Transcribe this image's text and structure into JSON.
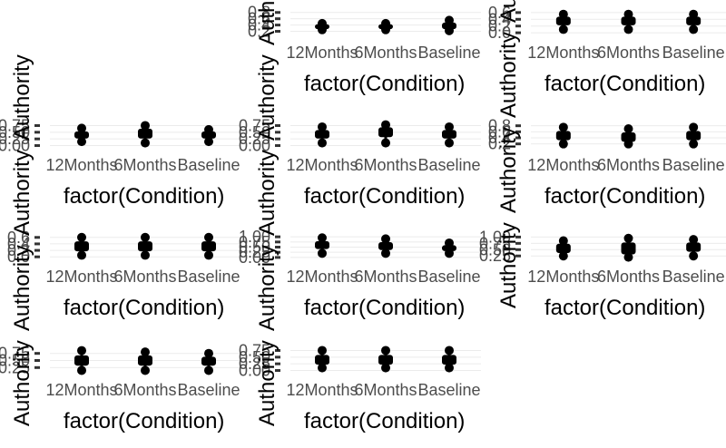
{
  "chart_data": [
    {
      "type": "box",
      "xlabel": "factor(Condition)",
      "ylabel": "Authority",
      "categories": [
        "12Months",
        "6Months",
        "Baseline"
      ],
      "yticks": [
        "0.2",
        "0.4",
        "0.6",
        "0.8"
      ],
      "ylim": [
        0.1,
        0.85
      ],
      "values": [
        [
          0.25,
          0.3,
          0.35,
          0.4,
          0.45
        ],
        [
          0.25,
          0.3,
          0.35,
          0.4,
          0.45
        ],
        [
          0.22,
          0.3,
          0.38,
          0.45,
          0.55
        ]
      ]
    },
    {
      "type": "box",
      "xlabel": "factor(Condition)",
      "ylabel": "Authority",
      "categories": [
        "12Months",
        "6Months",
        "Baseline"
      ],
      "yticks": [
        "0.0",
        "0.2",
        "0.4",
        "0.6"
      ],
      "ylim": [
        -0.05,
        0.65
      ],
      "values": [
        [
          0.1,
          0.25,
          0.35,
          0.45,
          0.55
        ],
        [
          0.1,
          0.25,
          0.35,
          0.45,
          0.55
        ],
        [
          0.1,
          0.25,
          0.35,
          0.45,
          0.55
        ]
      ]
    },
    {
      "type": "box",
      "xlabel": "factor(Condition)",
      "ylabel": "Authority",
      "categories": [
        "12Months",
        "6Months",
        "Baseline"
      ],
      "yticks": [
        "0.00",
        "0.25",
        "0.50",
        "0.75"
      ],
      "ylim": [
        -0.05,
        0.8
      ],
      "values": [
        [
          0.15,
          0.3,
          0.4,
          0.5,
          0.65
        ],
        [
          0.1,
          0.3,
          0.45,
          0.6,
          0.75
        ],
        [
          0.15,
          0.3,
          0.4,
          0.5,
          0.6
        ]
      ]
    },
    {
      "type": "box",
      "xlabel": "factor(Condition)",
      "ylabel": "Authority",
      "categories": [
        "12Months",
        "6Months",
        "Baseline"
      ],
      "yticks": [
        "0.00",
        "0.25",
        "0.50",
        "0.75"
      ],
      "ylim": [
        -0.05,
        0.8
      ],
      "values": [
        [
          0.1,
          0.3,
          0.45,
          0.55,
          0.7
        ],
        [
          0.1,
          0.35,
          0.5,
          0.65,
          0.78
        ],
        [
          0.1,
          0.3,
          0.45,
          0.55,
          0.7
        ]
      ]
    },
    {
      "type": "box",
      "xlabel": "factor(Condition)",
      "ylabel": "Authority",
      "categories": [
        "12Months",
        "6Months",
        "Baseline"
      ],
      "yticks": [
        "0.2",
        "0.4",
        "0.6",
        "0.8"
      ],
      "ylim": [
        0.1,
        0.85
      ],
      "values": [
        [
          0.2,
          0.35,
          0.45,
          0.6,
          0.75
        ],
        [
          0.2,
          0.3,
          0.45,
          0.55,
          0.7
        ],
        [
          0.2,
          0.35,
          0.45,
          0.6,
          0.75
        ]
      ]
    },
    {
      "type": "box",
      "xlabel": "factor(Condition)",
      "ylabel": "Authority",
      "categories": [
        "12Months",
        "6Months",
        "Baseline"
      ],
      "yticks": [
        "0.0",
        "0.2",
        "0.4",
        "0.6"
      ],
      "ylim": [
        -0.05,
        0.65
      ],
      "values": [
        [
          0.05,
          0.2,
          0.35,
          0.45,
          0.6
        ],
        [
          0.05,
          0.2,
          0.35,
          0.45,
          0.6
        ],
        [
          0.05,
          0.2,
          0.35,
          0.45,
          0.6
        ]
      ]
    },
    {
      "type": "box",
      "xlabel": "factor(Condition)",
      "ylabel": "Authority",
      "categories": [
        "12Months",
        "6Months",
        "Baseline"
      ],
      "yticks": [
        "0.00",
        "0.25",
        "0.50",
        "0.75",
        "1.00"
      ],
      "ylim": [
        -0.05,
        1.05
      ],
      "values": [
        [
          0.2,
          0.45,
          0.6,
          0.75,
          0.95
        ],
        [
          0.2,
          0.4,
          0.55,
          0.7,
          0.9
        ],
        [
          0.2,
          0.35,
          0.45,
          0.55,
          0.7
        ]
      ]
    },
    {
      "type": "box",
      "xlabel": "factor(Condition)",
      "ylabel": "Authority",
      "categories": [
        "12Months",
        "6Months",
        "Baseline"
      ],
      "yticks": [
        "0.25",
        "0.50",
        "0.75",
        "1.00"
      ],
      "ylim": [
        0.15,
        1.05
      ],
      "values": [
        [
          0.25,
          0.4,
          0.55,
          0.7,
          0.85
        ],
        [
          0.2,
          0.35,
          0.55,
          0.75,
          0.95
        ],
        [
          0.25,
          0.45,
          0.6,
          0.75,
          0.9
        ]
      ]
    },
    {
      "type": "box",
      "xlabel": "factor(Condition)",
      "ylabel": "Authority",
      "categories": [
        "12Months",
        "6Months",
        "Baseline"
      ],
      "yticks": [
        "0.25",
        "0.50",
        "0.75"
      ],
      "ylim": [
        0.1,
        0.9
      ],
      "values": [
        [
          0.15,
          0.35,
          0.5,
          0.65,
          0.85
        ],
        [
          0.15,
          0.35,
          0.55,
          0.65,
          0.8
        ],
        [
          0.15,
          0.35,
          0.45,
          0.6,
          0.75
        ]
      ]
    },
    {
      "type": "box",
      "xlabel": "factor(Condition)",
      "ylabel": "Authority",
      "categories": [
        "12Months",
        "6Months",
        "Baseline"
      ],
      "yticks": [
        "0.00",
        "0.25",
        "0.50",
        "0.75"
      ],
      "ylim": [
        -0.05,
        0.8
      ],
      "values": [
        [
          0.1,
          0.25,
          0.4,
          0.55,
          0.75
        ],
        [
          0.1,
          0.25,
          0.4,
          0.55,
          0.75
        ],
        [
          0.1,
          0.25,
          0.4,
          0.55,
          0.75
        ]
      ]
    }
  ]
}
